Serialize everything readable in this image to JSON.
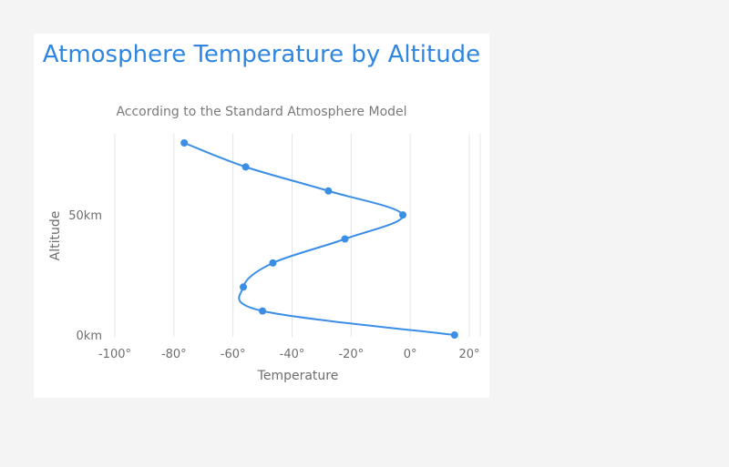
{
  "chart_data": {
    "type": "line",
    "title": "Atmosphere Temperature by Altitude",
    "subtitle": "According to the Standard Atmosphere Model",
    "xlabel": "Temperature",
    "ylabel": "Altitude",
    "xlim": [
      -100,
      20
    ],
    "ylim": [
      0,
      80
    ],
    "x_ticks": [
      -100,
      -80,
      -60,
      -40,
      -20,
      0,
      20
    ],
    "x_tick_labels": [
      "-100°",
      "-80°",
      "-60°",
      "-40°",
      "-20°",
      "0°",
      "20°"
    ],
    "y_ticks": [
      0,
      50
    ],
    "y_tick_labels": [
      "0km",
      "50km"
    ],
    "grid": true,
    "series": [
      {
        "color": "#3a8ee6",
        "points": [
          {
            "x": 15,
            "y": 0
          },
          {
            "x": -50,
            "y": 10
          },
          {
            "x": -56.5,
            "y": 20
          },
          {
            "x": -46.5,
            "y": 30
          },
          {
            "x": -22.1,
            "y": 40
          },
          {
            "x": -2.5,
            "y": 50
          },
          {
            "x": -27.7,
            "y": 60
          },
          {
            "x": -55.7,
            "y": 70
          },
          {
            "x": -76.5,
            "y": 80
          }
        ]
      }
    ]
  }
}
